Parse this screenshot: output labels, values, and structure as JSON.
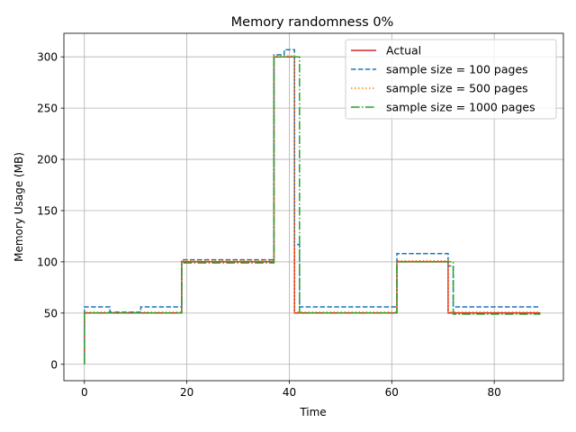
{
  "chart_data": {
    "type": "line",
    "title": "Memory randomness 0%",
    "xlabel": "Time",
    "ylabel": "Memory Usage (MB)",
    "xlim": [
      -4,
      93.5
    ],
    "ylim": [
      -16,
      323
    ],
    "xticks": [
      0,
      20,
      40,
      60,
      80
    ],
    "yticks": [
      0,
      50,
      100,
      150,
      200,
      250,
      300
    ],
    "grid": true,
    "legend_position": "top-right",
    "series": [
      {
        "name": "Actual",
        "color": "#d62728",
        "dash": "solid",
        "steps": [
          [
            0,
            0
          ],
          [
            0,
            50
          ],
          [
            19,
            50
          ],
          [
            19,
            100
          ],
          [
            37,
            100
          ],
          [
            37,
            300
          ],
          [
            41,
            300
          ],
          [
            41,
            50
          ],
          [
            61,
            50
          ],
          [
            61,
            100
          ],
          [
            71,
            100
          ],
          [
            71,
            50
          ],
          [
            89,
            50
          ]
        ]
      },
      {
        "name": "sample size = 100 pages",
        "color": "#1f77b4",
        "dash": "dashed",
        "steps": [
          [
            0,
            0
          ],
          [
            0,
            56
          ],
          [
            5,
            56
          ],
          [
            5,
            51
          ],
          [
            11,
            51
          ],
          [
            11,
            56
          ],
          [
            19,
            56
          ],
          [
            19,
            102
          ],
          [
            37,
            102
          ],
          [
            37,
            302
          ],
          [
            39,
            302
          ],
          [
            39,
            307
          ],
          [
            41,
            307
          ],
          [
            41,
            117
          ],
          [
            42,
            117
          ],
          [
            42,
            56
          ],
          [
            61,
            56
          ],
          [
            61,
            108
          ],
          [
            71,
            108
          ],
          [
            71,
            96
          ],
          [
            72,
            96
          ],
          [
            72,
            56
          ],
          [
            89,
            56
          ]
        ]
      },
      {
        "name": "sample size = 500 pages",
        "color": "#ff7f0e",
        "dash": "dotted",
        "steps": [
          [
            0,
            0
          ],
          [
            0,
            51
          ],
          [
            19,
            51
          ],
          [
            19,
            101
          ],
          [
            37,
            101
          ],
          [
            37,
            301
          ],
          [
            41,
            301
          ],
          [
            41,
            51
          ],
          [
            61,
            51
          ],
          [
            61,
            101
          ],
          [
            71,
            101
          ],
          [
            71,
            51
          ],
          [
            89,
            51
          ]
        ]
      },
      {
        "name": "sample size = 1000 pages",
        "color": "#2ca02c",
        "dash": "dashdot",
        "steps": [
          [
            0,
            0
          ],
          [
            0,
            50
          ],
          [
            19,
            50
          ],
          [
            19,
            99
          ],
          [
            37,
            99
          ],
          [
            37,
            300
          ],
          [
            42,
            300
          ],
          [
            42,
            50
          ],
          [
            61,
            50
          ],
          [
            61,
            100
          ],
          [
            72,
            100
          ],
          [
            72,
            49
          ],
          [
            89,
            49
          ]
        ]
      }
    ]
  }
}
